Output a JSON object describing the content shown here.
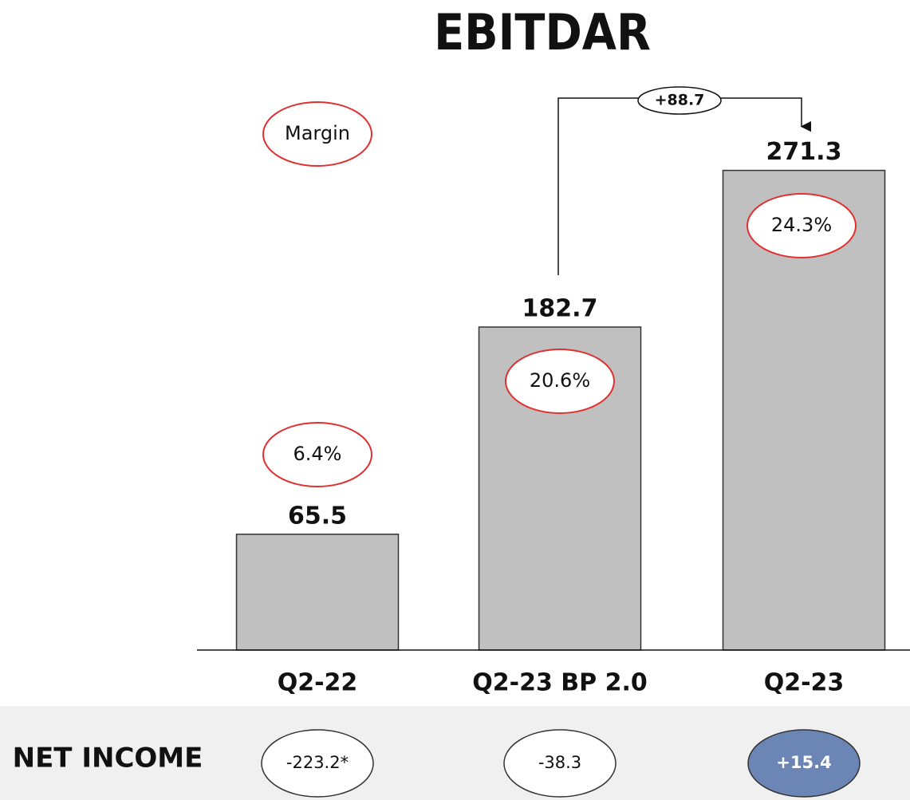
{
  "chart_data": {
    "type": "bar",
    "title": "EBITDAR",
    "categories": [
      "Q2-22",
      "Q2-23 BP 2.0",
      "Q2-23"
    ],
    "values": [
      65.5,
      182.7,
      271.3
    ],
    "color": "#c0c0c0",
    "ylim": [
      0,
      300
    ],
    "margin": {
      "label": "Margin",
      "value_labels": [
        "6.4%",
        "20.6%",
        "24.3%"
      ],
      "color": "#e03030"
    },
    "change_label": "+88.7",
    "net_income": {
      "label": "NET INCOME",
      "value_labels": [
        "-223.2*",
        "-38.3",
        "+15.4"
      ],
      "colors": [
        "#ffffff",
        "#ffffff",
        "#6b85b5"
      ]
    }
  }
}
